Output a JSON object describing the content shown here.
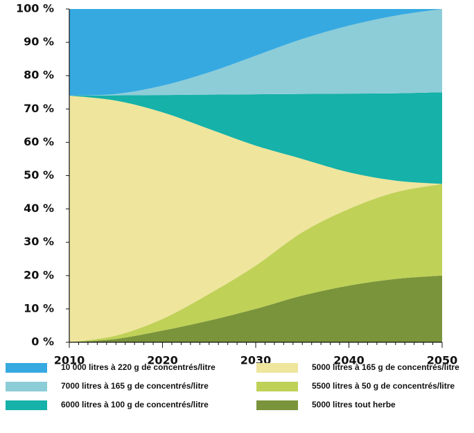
{
  "chart_data": {
    "type": "stacked_area",
    "x": [
      2010,
      2015,
      2020,
      2025,
      2030,
      2035,
      2040,
      2045,
      2050
    ],
    "series": [
      {
        "name": "10 000 litres à 220 g de concentrés/litre",
        "color": "#36a9e1",
        "values": [
          26,
          25.5,
          23,
          19,
          14,
          9,
          5,
          2,
          0
        ]
      },
      {
        "name": "7000 litres à 165 g de concentrés/litre",
        "color": "#8dcdd8",
        "values": [
          0,
          0.4,
          2.8,
          6.7,
          11.6,
          16.5,
          20.4,
          23.3,
          25
        ]
      },
      {
        "name": "6000 litres à 100 g de concentrés/litre",
        "color": "#16b1a8",
        "values": [
          0,
          1.6,
          5.2,
          10.3,
          15.4,
          19.5,
          23.6,
          26.2,
          27.5
        ]
      },
      {
        "name": "5000 litres à 165 g de concentrés/litre",
        "color": "#efe59d",
        "values": [
          74,
          70.5,
          62,
          49.5,
          36,
          22,
          11,
          3.5,
          0
        ]
      },
      {
        "name": "5500 litres à 50 g de concentrés/litre",
        "color": "#bfd157",
        "values": [
          0,
          1,
          3.5,
          8,
          13,
          19,
          23,
          26,
          27.5
        ]
      },
      {
        "name": "5000 litres tout herbe",
        "color": "#7a943b",
        "values": [
          0,
          1,
          3.5,
          6.5,
          10,
          14,
          17,
          19,
          20
        ]
      }
    ],
    "xlim": [
      2010,
      2050
    ],
    "xticks": [
      2010,
      2020,
      2030,
      2040,
      2050
    ],
    "ylim": [
      0,
      100
    ],
    "yticks": [
      {
        "value": 0,
        "label": "0 %"
      },
      {
        "value": 10,
        "label": "10 %"
      },
      {
        "value": 20,
        "label": "20 %"
      },
      {
        "value": 30,
        "label": "30 %"
      },
      {
        "value": 40,
        "label": "40 %"
      },
      {
        "value": 50,
        "label": "50 %"
      },
      {
        "value": 60,
        "label": "60 %"
      },
      {
        "value": 70,
        "label": "70 %"
      },
      {
        "value": 80,
        "label": "80 %"
      },
      {
        "value": 90,
        "label": "90 %"
      },
      {
        "value": 100,
        "label": "100 %"
      }
    ]
  }
}
